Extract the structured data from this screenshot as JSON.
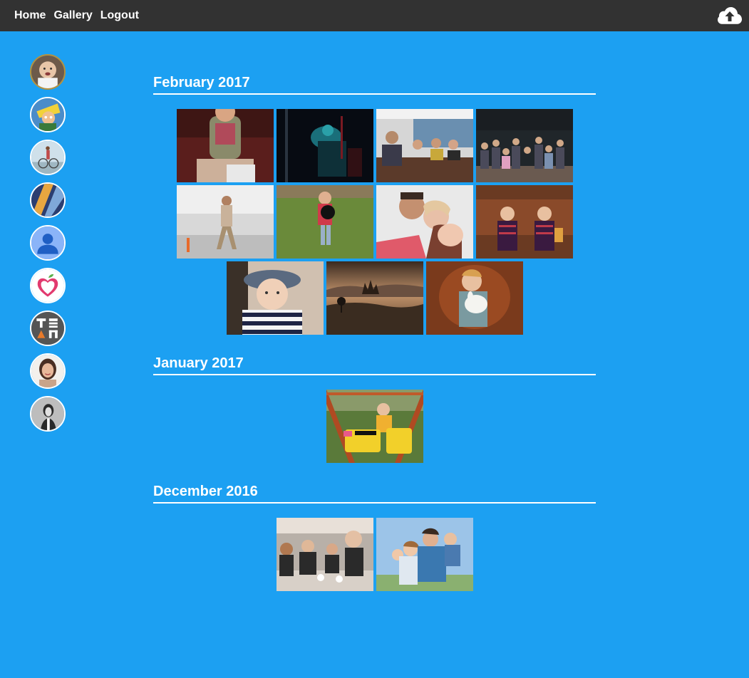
{
  "nav": {
    "home": "Home",
    "gallery": "Gallery",
    "logout": "Logout"
  },
  "upload_icon": "cloud-upload-icon",
  "sidebar": {
    "avatars": [
      {
        "name": "avatar-toddler",
        "active": true
      },
      {
        "name": "avatar-cartoon"
      },
      {
        "name": "avatar-bicycle"
      },
      {
        "name": "avatar-abstract"
      },
      {
        "name": "avatar-default-user"
      },
      {
        "name": "avatar-apple-heart"
      },
      {
        "name": "avatar-team-logo"
      },
      {
        "name": "avatar-woman"
      },
      {
        "name": "avatar-bw-portrait"
      }
    ]
  },
  "sections": [
    {
      "title": "February 2017",
      "photo_count": 11
    },
    {
      "title": "January 2017",
      "photo_count": 1
    },
    {
      "title": "December 2016",
      "photo_count": 2
    }
  ],
  "colors": {
    "background": "#1ca0f2",
    "topbar": "#323232",
    "text": "#ffffff",
    "active_avatar_border": "#b8913a"
  }
}
